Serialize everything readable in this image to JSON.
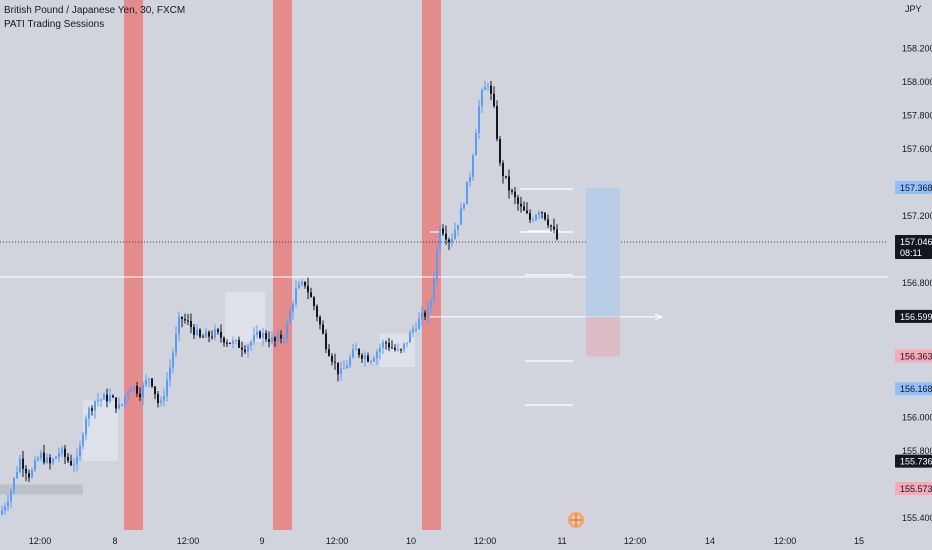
{
  "legend": {
    "symbol": "British Pound / Japanese Yen, 30, FXCM",
    "indicator": "PATI Trading Sessions"
  },
  "currency": "JPY",
  "y_axis": {
    "ticks": [
      "158.200",
      "158.000",
      "157.800",
      "157.600",
      "157.200",
      "156.800",
      "156.000",
      "155.800",
      "155.400"
    ],
    "tick_values": [
      158.2,
      158.0,
      157.8,
      157.6,
      157.2,
      156.8,
      156.0,
      155.8,
      155.4
    ]
  },
  "x_axis": {
    "ticks": [
      "12:00",
      "8",
      "12:00",
      "9",
      "12:00",
      "10",
      "12:00",
      "11",
      "12:00",
      "14",
      "12:00",
      "15"
    ]
  },
  "price_tags": [
    {
      "value": "157.368",
      "price": 157.368,
      "bg": "#90bff9",
      "fg": "#131722"
    },
    {
      "value": "157.046",
      "price": 157.046,
      "bg": "#131722",
      "fg": "#ffffff",
      "sub": "08:11"
    },
    {
      "value": "156.599",
      "price": 156.599,
      "bg": "#131722",
      "fg": "#ffffff"
    },
    {
      "value": "156.363",
      "price": 156.363,
      "bg": "#f7a9b8",
      "fg": "#131722"
    },
    {
      "value": "156.168",
      "price": 156.168,
      "bg": "#90bff9",
      "fg": "#131722"
    },
    {
      "value": "155.736",
      "price": 155.736,
      "bg": "#131722",
      "fg": "#ffffff"
    },
    {
      "value": "155.573",
      "price": 155.573,
      "bg": "#f7a9b8",
      "fg": "#131722"
    }
  ],
  "colors": {
    "background": "#d1d4dc",
    "session_band": "#e48c8c",
    "bull": "#5b9cf6",
    "bear": "#131722",
    "target_zone": "#b8cde6",
    "stop_zone": "#dcbcc6",
    "session_box": "#e0e3eb"
  },
  "chart_data": {
    "type": "candlestick",
    "symbol": "GBPJPY",
    "timeframe": "30",
    "ylim": [
      155.35,
      158.45
    ],
    "last_price": 157.046,
    "countdown": "08:11",
    "position_tool": {
      "entry": 156.599,
      "target": 157.368,
      "stop": 156.363
    },
    "close_path": [
      [
        0,
        155.42
      ],
      [
        10,
        155.55
      ],
      [
        20,
        155.75
      ],
      [
        30,
        155.65
      ],
      [
        40,
        155.78
      ],
      [
        50,
        155.72
      ],
      [
        60,
        155.8
      ],
      [
        70,
        155.73
      ],
      [
        78,
        155.74
      ],
      [
        85,
        156.0
      ],
      [
        95,
        156.1
      ],
      [
        110,
        156.12
      ],
      [
        120,
        156.05
      ],
      [
        130,
        156.2
      ],
      [
        140,
        156.15
      ],
      [
        150,
        156.25
      ],
      [
        160,
        156.05
      ],
      [
        170,
        156.3
      ],
      [
        180,
        156.6
      ],
      [
        190,
        156.55
      ],
      [
        200,
        156.47
      ],
      [
        215,
        156.5
      ],
      [
        230,
        156.45
      ],
      [
        245,
        156.42
      ],
      [
        260,
        156.5
      ],
      [
        275,
        156.45
      ],
      [
        285,
        156.5
      ],
      [
        295,
        156.75
      ],
      [
        305,
        156.8
      ],
      [
        315,
        156.65
      ],
      [
        325,
        156.45
      ],
      [
        340,
        156.25
      ],
      [
        355,
        156.4
      ],
      [
        370,
        156.35
      ],
      [
        385,
        156.45
      ],
      [
        400,
        156.38
      ],
      [
        415,
        156.55
      ],
      [
        430,
        156.65
      ],
      [
        440,
        157.15
      ],
      [
        450,
        157.05
      ],
      [
        460,
        157.2
      ],
      [
        470,
        157.45
      ],
      [
        480,
        157.9
      ],
      [
        488,
        158.0
      ],
      [
        495,
        157.8
      ],
      [
        500,
        157.5
      ],
      [
        510,
        157.35
      ],
      [
        520,
        157.25
      ],
      [
        530,
        157.18
      ],
      [
        540,
        157.25
      ],
      [
        550,
        157.15
      ],
      [
        558,
        157.05
      ]
    ]
  }
}
